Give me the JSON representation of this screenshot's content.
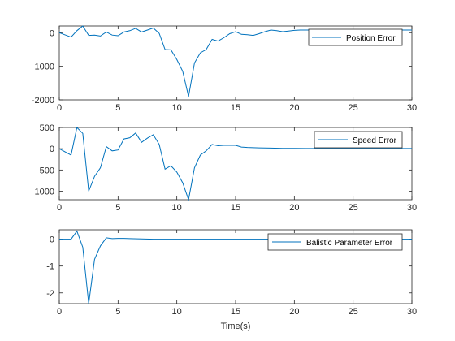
{
  "chart_data": [
    {
      "type": "line",
      "legend": "Position Error",
      "legend_location": "top-right",
      "xlim": [
        0,
        30
      ],
      "ylim": [
        -2000,
        200
      ],
      "xticks": [
        0,
        5,
        10,
        15,
        20,
        25,
        30
      ],
      "yticks": [
        0,
        -1000,
        -2000
      ],
      "xticklabels": [
        "0",
        "5",
        "10",
        "15",
        "20",
        "25",
        "30"
      ],
      "yticklabels": [
        "0",
        "-1000",
        "-2000"
      ],
      "color": "#0072bd",
      "x": [
        0,
        1,
        1.5,
        2,
        2.5,
        3,
        3.5,
        4,
        4.5,
        5,
        5.5,
        6,
        6.5,
        7,
        7.5,
        8,
        8.5,
        9,
        9.5,
        10,
        10.5,
        11,
        11.5,
        12,
        12.5,
        13,
        13.5,
        14,
        14.5,
        15,
        15.5,
        16,
        16.5,
        17,
        17.5,
        18,
        18.5,
        19,
        19.5,
        20,
        20.5,
        21,
        22,
        23,
        24,
        25,
        26,
        27,
        28,
        29,
        30
      ],
      "y": [
        0,
        -130,
        60,
        200,
        -80,
        -70,
        -100,
        20,
        -70,
        -90,
        20,
        60,
        130,
        20,
        80,
        140,
        -20,
        -500,
        -510,
        -800,
        -1150,
        -1900,
        -900,
        -600,
        -500,
        -200,
        -250,
        -150,
        -30,
        30,
        -50,
        -60,
        -80,
        -30,
        30,
        80,
        60,
        30,
        50,
        70,
        80,
        80,
        80,
        80,
        80,
        80,
        80,
        80,
        80,
        80,
        80
      ]
    },
    {
      "type": "line",
      "legend": "Speed Error",
      "legend_location": "top-right",
      "xlim": [
        0,
        30
      ],
      "ylim": [
        -1200,
        500
      ],
      "xticks": [
        0,
        5,
        10,
        15,
        20,
        25,
        30
      ],
      "yticks": [
        500,
        0,
        -500,
        -1000
      ],
      "xticklabels": [
        "0",
        "5",
        "10",
        "15",
        "20",
        "25",
        "30"
      ],
      "yticklabels": [
        "500",
        "0",
        "-500",
        "-1000"
      ],
      "color": "#0072bd",
      "x": [
        0,
        1,
        1.5,
        2,
        2.5,
        3,
        3.5,
        4,
        4.5,
        5,
        5.5,
        6,
        6.5,
        7,
        7.5,
        8,
        8.5,
        9,
        9.5,
        10,
        10.5,
        11,
        11.5,
        12,
        12.5,
        13,
        13.5,
        14,
        14.5,
        15,
        15.5,
        16,
        17,
        18,
        19,
        20,
        21,
        22,
        23,
        24,
        25,
        26,
        27,
        28,
        29,
        30
      ],
      "y": [
        0,
        -150,
        500,
        360,
        -1000,
        -650,
        -450,
        50,
        -50,
        -30,
        230,
        260,
        370,
        150,
        250,
        330,
        100,
        -480,
        -400,
        -550,
        -800,
        -1200,
        -450,
        -150,
        -50,
        100,
        70,
        80,
        80,
        80,
        40,
        30,
        20,
        15,
        10,
        10,
        5,
        5,
        5,
        5,
        5,
        5,
        5,
        5,
        5,
        5
      ]
    },
    {
      "type": "line",
      "legend": "Balistic Parameter Error",
      "legend_location": "top-right",
      "xlabel": "Time(s)",
      "xlim": [
        0,
        30
      ],
      "ylim": [
        -2.4,
        0.35
      ],
      "xticks": [
        0,
        5,
        10,
        15,
        20,
        25,
        30
      ],
      "yticks": [
        0,
        -1,
        -2
      ],
      "xticklabels": [
        "0",
        "5",
        "10",
        "15",
        "20",
        "25",
        "30"
      ],
      "yticklabels": [
        "0",
        "-1",
        "-2"
      ],
      "color": "#0072bd",
      "x": [
        0,
        1,
        1.5,
        2,
        2.5,
        3,
        3.5,
        4,
        4.5,
        5,
        5.5,
        6,
        7,
        8,
        9,
        10,
        12,
        15,
        20,
        25,
        30
      ],
      "y": [
        0,
        0,
        0.3,
        -0.3,
        -2.4,
        -0.75,
        -0.25,
        0.05,
        0.02,
        0.03,
        0.03,
        0.02,
        0.01,
        0.0,
        0.0,
        0.0,
        0.0,
        0.0,
        0.0,
        0.0,
        0.0
      ]
    }
  ]
}
